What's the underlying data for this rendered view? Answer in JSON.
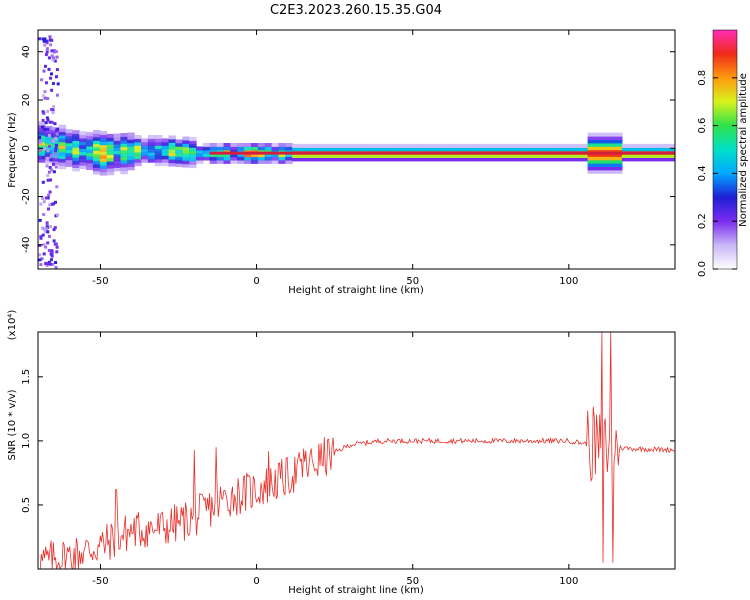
{
  "title": "C2E3.2023.260.15.35.G04",
  "colors": {
    "snr_line": "#e8302a",
    "ridge": "#d11f3c",
    "colormap": [
      "#ffffff",
      "#c9b6f7",
      "#7a2cf0",
      "#1f1fd6",
      "#00a8ff",
      "#00e0c8",
      "#2ee24a",
      "#d8f21a",
      "#ff9a10",
      "#f02b18",
      "#ff2cb8"
    ]
  },
  "chart_data": [
    {
      "type": "heatmap",
      "xlabel": "Height of straight line (km)",
      "ylabel": "Frequency (Hz)",
      "xlim": [
        -70,
        134
      ],
      "ylim": [
        -50,
        49
      ],
      "xticks": [
        -50,
        0,
        50,
        100
      ],
      "yticks": [
        -40,
        -20,
        0,
        20,
        40
      ],
      "grid": false,
      "colorbar": {
        "label": "Normalized spectral amplitude",
        "range": [
          0.0,
          1.0
        ],
        "ticks": [
          "0.0",
          "0.2",
          "0.4",
          "0.6",
          "0.8"
        ]
      },
      "ridge": {
        "frequency_hz": -2,
        "description_points": [
          [
            -70,
            2
          ],
          [
            -60,
            0
          ],
          [
            -50,
            -2
          ],
          [
            -40,
            -1
          ],
          [
            -30,
            -1
          ],
          [
            -20,
            -2
          ],
          [
            -10,
            -2
          ],
          [
            0,
            -2
          ],
          [
            20,
            -2
          ],
          [
            50,
            -2
          ],
          [
            100,
            -2
          ],
          [
            110,
            -2
          ],
          [
            134,
            -2
          ]
        ]
      }
    },
    {
      "type": "line",
      "xlabel": "Height of straight line (km)",
      "ylabel": "SNR (10 * v/v)",
      "y_multiplier": "(x10⁴)",
      "xlim": [
        -70,
        134
      ],
      "ylim": [
        0,
        1.85
      ],
      "xticks": [
        -50,
        0,
        50,
        100
      ],
      "yticks": [
        "0.5",
        "1.0",
        "1.5"
      ],
      "grid": false,
      "series": [
        {
          "trend": [
            [
              -70,
              0.05
            ],
            [
              -60,
              0.1
            ],
            [
              -50,
              0.18
            ],
            [
              -40,
              0.3
            ],
            [
              -30,
              0.32
            ],
            [
              -20,
              0.4
            ],
            [
              -10,
              0.55
            ],
            [
              0,
              0.62
            ],
            [
              10,
              0.72
            ],
            [
              20,
              0.85
            ],
            [
              30,
              0.97
            ],
            [
              40,
              1.0
            ],
            [
              50,
              1.0
            ],
            [
              70,
              1.0
            ],
            [
              90,
              1.0
            ],
            [
              100,
              1.0
            ],
            [
              105,
              0.98
            ],
            [
              108,
              0.97
            ],
            [
              110,
              0.95
            ],
            [
              113,
              0.95
            ],
            [
              120,
              0.94
            ],
            [
              134,
              0.93
            ]
          ],
          "spikes": [
            [
              -45,
              0.62
            ],
            [
              -20,
              0.93
            ],
            [
              -13,
              0.95
            ],
            [
              4,
              0.92
            ],
            [
              15,
              0.94
            ],
            [
              110.5,
              1.85
            ],
            [
              111,
              0.05
            ],
            [
              113.5,
              1.85
            ],
            [
              114,
              0.05
            ]
          ]
        }
      ]
    }
  ]
}
